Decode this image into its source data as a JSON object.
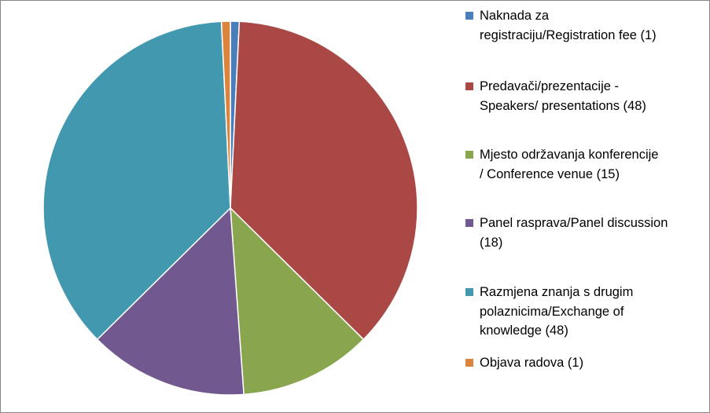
{
  "chart_data": {
    "type": "pie",
    "slices": [
      {
        "label": "Naknada za\nregistraciju/Registration fee (1)",
        "value": 1,
        "color": "#4A7EBB"
      },
      {
        "label": "Predavači/prezentacije -\nSpeakers/ presentations (48)",
        "value": 48,
        "color": "#A94845"
      },
      {
        "label": "Mjesto održavanja konferencije\n/ Conference venue (15)",
        "value": 15,
        "color": "#89A54E"
      },
      {
        "label": "Panel rasprava/Panel discussion\n(18)",
        "value": 18,
        "color": "#71588F"
      },
      {
        "label": "Razmjena znanja s drugim\npolaznicima/Exchange of\nknowledge (48)",
        "value": 48,
        "color": "#4198AF"
      },
      {
        "label": "Objava radova  (1)",
        "value": 1,
        "color": "#DB843D"
      }
    ],
    "legend_position": "right"
  }
}
